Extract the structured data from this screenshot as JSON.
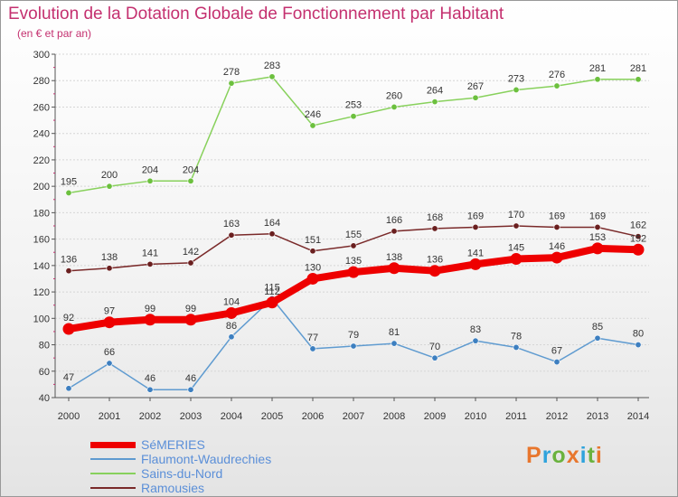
{
  "title": "Evolution de la Dotation Globale de Fonctionnement par Habitant",
  "subtitle": "(en € et par an)",
  "logo": {
    "text": "Proxiti",
    "colors": [
      "#e8762d",
      "#2fa3dc",
      "#6ab23e",
      "#e8762d",
      "#2fa3dc",
      "#6ab23e",
      "#e8762d"
    ]
  },
  "chart_data": {
    "type": "line",
    "title": "Evolution de la Dotation Globale de Fonctionnement par Habitant",
    "subtitle": "(en € et par an)",
    "xlabel": "",
    "ylabel": "",
    "ylim": [
      40,
      300
    ],
    "yticks": [
      40,
      60,
      80,
      100,
      120,
      140,
      160,
      180,
      200,
      220,
      240,
      260,
      280,
      300
    ],
    "x": [
      "2000",
      "2001",
      "2002",
      "2003",
      "2004",
      "2005",
      "2006",
      "2007",
      "2008",
      "2009",
      "2010",
      "2011",
      "2012",
      "2013",
      "2014"
    ],
    "series": [
      {
        "name": "Sains-du-Nord",
        "color": "#88d15c",
        "marker": "#6cc03e",
        "values": [
          195,
          200,
          204,
          204,
          278,
          283,
          246,
          253,
          260,
          264,
          267,
          273,
          276,
          281,
          281
        ]
      },
      {
        "name": "Ramousies",
        "color": "#7a2a2a",
        "marker": "#6a1f1f",
        "values": [
          136,
          138,
          141,
          142,
          163,
          164,
          151,
          155,
          166,
          168,
          169,
          170,
          169,
          169,
          162
        ]
      },
      {
        "name": "Flaumont-Waudrechies",
        "color": "#5f9bd0",
        "marker": "#3d7fc0",
        "values": [
          47,
          66,
          46,
          46,
          86,
          115,
          77,
          79,
          81,
          70,
          83,
          78,
          67,
          85,
          80
        ]
      },
      {
        "name": "SéMERIES",
        "color": "#ee0000",
        "marker": "#ee0000",
        "values": [
          92,
          97,
          99,
          99,
          104,
          112,
          130,
          135,
          138,
          136,
          141,
          145,
          146,
          153,
          152
        ]
      }
    ],
    "legend": [
      "SéMERIES",
      "Flaumont-Waudrechies",
      "Sains-du-Nord",
      "Ramousies"
    ]
  }
}
